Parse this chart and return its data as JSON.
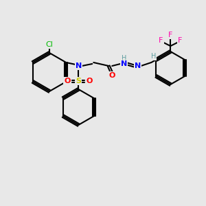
{
  "bg_color": "#e8e8e8",
  "bond_color": "#000000",
  "bond_width": 1.5,
  "atom_colors": {
    "C": "#000000",
    "N": "#0000FF",
    "O": "#FF0000",
    "S": "#CCCC00",
    "Cl": "#00BB00",
    "F": "#FF00AA",
    "H": "#5F9EA0"
  },
  "font_size": 7,
  "bold_font_size": 7
}
